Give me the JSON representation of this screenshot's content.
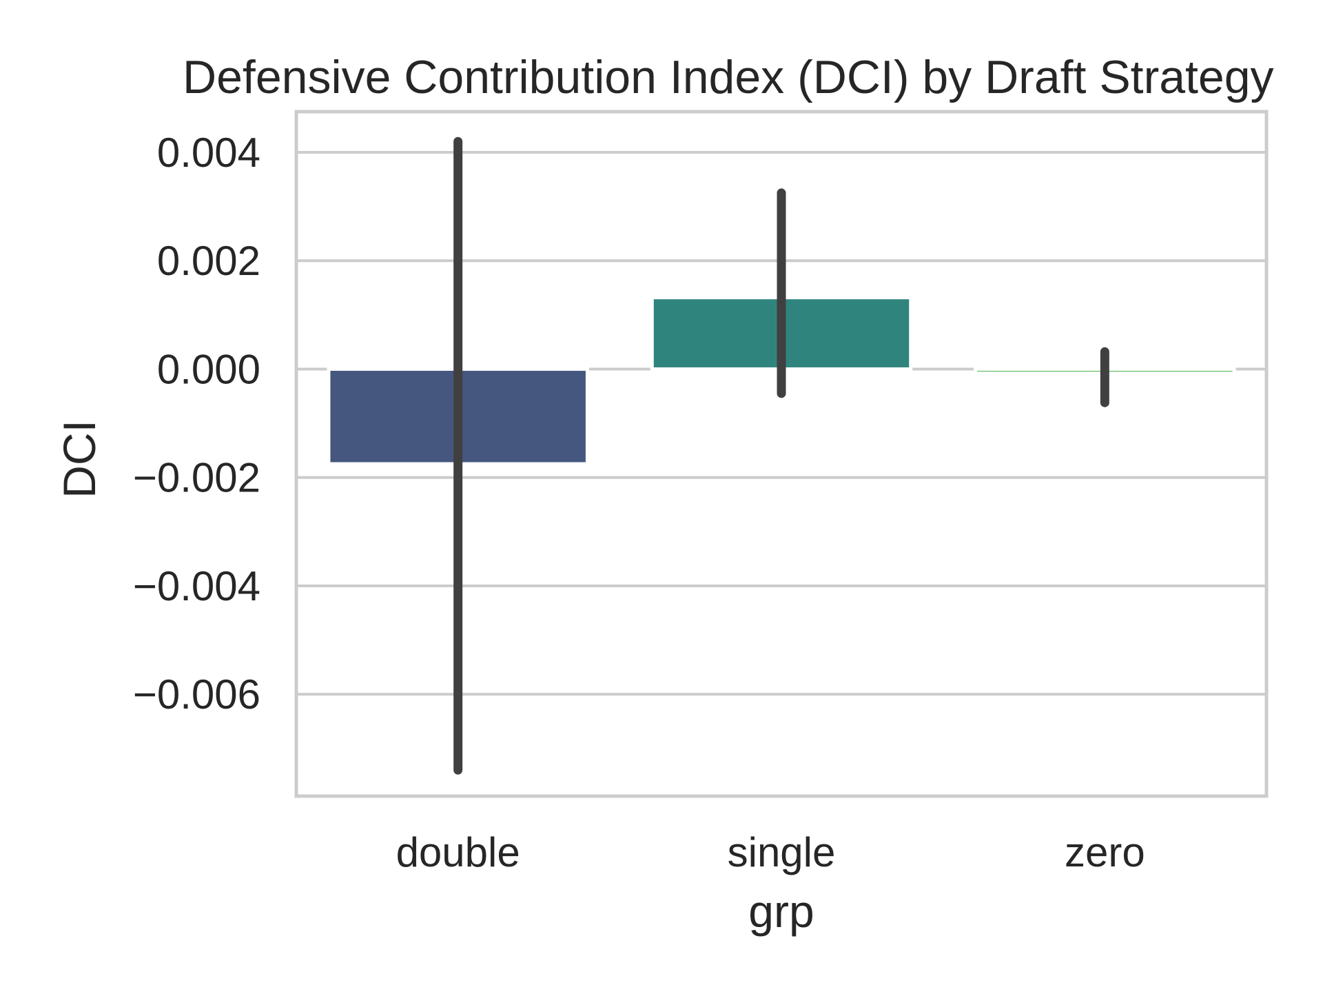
{
  "chart_data": {
    "type": "bar",
    "title": "Defensive Contribution Index (DCI) by Draft Strategy",
    "xlabel": "grp",
    "ylabel": "DCI",
    "categories": [
      "double",
      "single",
      "zero"
    ],
    "values": [
      -0.00175,
      0.00132,
      -8e-05
    ],
    "error_bars": [
      {
        "low": -0.0074,
        "high": 0.0042
      },
      {
        "low": -0.00045,
        "high": 0.00325
      },
      {
        "low": -0.00062,
        "high": 0.00032
      }
    ],
    "bar_colors": [
      "#46577f",
      "#2f857d",
      "#6cc36a"
    ],
    "error_color": "#404040",
    "yticks": [
      0.004,
      0.002,
      0.0,
      -0.002,
      -0.004,
      -0.006
    ],
    "ytick_labels": [
      "0.004",
      "0.002",
      "0.000",
      "−0.002",
      "−0.004",
      "−0.006"
    ],
    "ylim": [
      -0.00788,
      0.00475
    ],
    "grid": true,
    "grid_color": "#cccccc",
    "legend": "none"
  }
}
